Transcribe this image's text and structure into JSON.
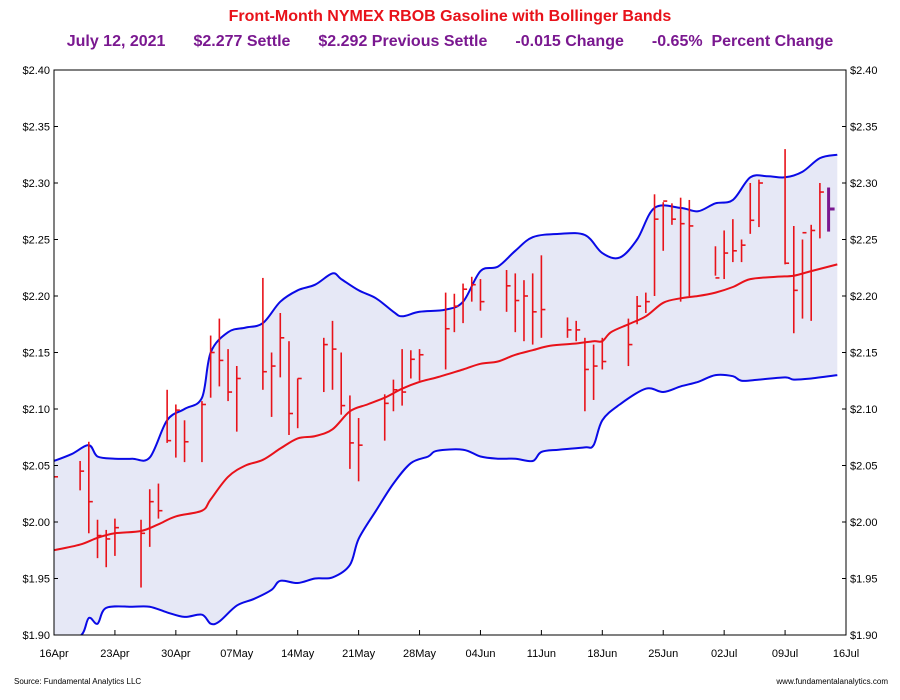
{
  "header": {
    "title": "Front-Month NYMEX RBOB Gasoline with Bollinger Bands",
    "date": "July 12, 2021",
    "settle": "$2.277 Settle",
    "previous_settle": "$2.292 Previous Settle",
    "change": "-0.015 Change",
    "percent_change": "-0.65%  Percent Change"
  },
  "footer": {
    "source": "Source: Fundamental Analytics LLC",
    "website": "www.fundamentalanalytics.com"
  },
  "colors": {
    "price_bar": "#e8121a",
    "upper_band": "#0a0ae6",
    "lower_band": "#0a0ae6",
    "middle_band": "#e8121a",
    "band_fill": "#e6e8f6",
    "last_bar": "#7a1890"
  },
  "chart_data": {
    "type": "ohlc",
    "title": "Front-Month NYMEX RBOB Gasoline with Bollinger Bands",
    "x_range": [
      "16Apr",
      "16Jul"
    ],
    "x_ticks": [
      "16Apr",
      "23Apr",
      "30Apr",
      "07May",
      "14May",
      "21May",
      "28May",
      "04Jun",
      "11Jun",
      "18Jun",
      "25Jun",
      "02Jul",
      "09Jul",
      "16Jul"
    ],
    "ylim": [
      1.9,
      2.4
    ],
    "y_ticks": [
      "$1.90",
      "$1.95",
      "$2.00",
      "$2.05",
      "$2.10",
      "$2.15",
      "$2.20",
      "$2.25",
      "$2.30",
      "$2.35",
      "$2.40"
    ],
    "y_tick_values": [
      1.9,
      1.95,
      2.0,
      2.05,
      2.1,
      2.15,
      2.2,
      2.25,
      2.3,
      2.35,
      2.4
    ],
    "bars": [
      {
        "day": 0,
        "h": 2.04,
        "l": 2.04,
        "c": 2.04
      },
      {
        "day": 3,
        "h": 2.054,
        "l": 2.028,
        "c": 2.045
      },
      {
        "day": 4,
        "h": 2.071,
        "l": 1.99,
        "c": 2.018
      },
      {
        "day": 5,
        "h": 2.002,
        "l": 1.968,
        "c": 1.988
      },
      {
        "day": 6,
        "h": 1.993,
        "l": 1.96,
        "c": 1.985
      },
      {
        "day": 7,
        "h": 2.003,
        "l": 1.97,
        "c": 1.995
      },
      {
        "day": 10,
        "h": 2.002,
        "l": 1.942,
        "c": 1.99
      },
      {
        "day": 11,
        "h": 2.029,
        "l": 1.978,
        "c": 2.018
      },
      {
        "day": 12,
        "h": 2.034,
        "l": 2.003,
        "c": 2.01
      },
      {
        "day": 13,
        "h": 2.117,
        "l": 2.07,
        "c": 2.072
      },
      {
        "day": 14,
        "h": 2.104,
        "l": 2.057,
        "c": 2.099
      },
      {
        "day": 15,
        "h": 2.09,
        "l": 2.053,
        "c": 2.071
      },
      {
        "day": 17,
        "h": 2.107,
        "l": 2.053,
        "c": 2.104
      },
      {
        "day": 18,
        "h": 2.165,
        "l": 2.11,
        "c": 2.15
      },
      {
        "day": 19,
        "h": 2.18,
        "l": 2.12,
        "c": 2.143
      },
      {
        "day": 20,
        "h": 2.153,
        "l": 2.107,
        "c": 2.115
      },
      {
        "day": 21,
        "h": 2.138,
        "l": 2.08,
        "c": 2.127
      },
      {
        "day": 24,
        "h": 2.216,
        "l": 2.117,
        "c": 2.133
      },
      {
        "day": 25,
        "h": 2.15,
        "l": 2.093,
        "c": 2.138
      },
      {
        "day": 26,
        "h": 2.185,
        "l": 2.128,
        "c": 2.163
      },
      {
        "day": 27,
        "h": 2.16,
        "l": 2.077,
        "c": 2.096
      },
      {
        "day": 28,
        "h": 2.127,
        "l": 2.083,
        "c": 2.127
      },
      {
        "day": 31,
        "h": 2.163,
        "l": 2.115,
        "c": 2.157
      },
      {
        "day": 32,
        "h": 2.178,
        "l": 2.117,
        "c": 2.153
      },
      {
        "day": 33,
        "h": 2.15,
        "l": 2.095,
        "c": 2.103
      },
      {
        "day": 34,
        "h": 2.112,
        "l": 2.047,
        "c": 2.07
      },
      {
        "day": 35,
        "h": 2.092,
        "l": 2.036,
        "c": 2.068
      },
      {
        "day": 38,
        "h": 2.113,
        "l": 2.072,
        "c": 2.105
      },
      {
        "day": 39,
        "h": 2.126,
        "l": 2.098,
        "c": 2.117
      },
      {
        "day": 40,
        "h": 2.153,
        "l": 2.103,
        "c": 2.115
      },
      {
        "day": 41,
        "h": 2.152,
        "l": 2.127,
        "c": 2.144
      },
      {
        "day": 42,
        "h": 2.153,
        "l": 2.125,
        "c": 2.148
      },
      {
        "day": 45,
        "h": 2.203,
        "l": 2.135,
        "c": 2.171
      },
      {
        "day": 46,
        "h": 2.202,
        "l": 2.168,
        "c": 2.191
      },
      {
        "day": 47,
        "h": 2.211,
        "l": 2.176,
        "c": 2.206
      },
      {
        "day": 48,
        "h": 2.217,
        "l": 2.195,
        "c": 2.21
      },
      {
        "day": 49,
        "h": 2.215,
        "l": 2.187,
        "c": 2.195
      },
      {
        "day": 52,
        "h": 2.223,
        "l": 2.186,
        "c": 2.209
      },
      {
        "day": 53,
        "h": 2.22,
        "l": 2.168,
        "c": 2.196
      },
      {
        "day": 54,
        "h": 2.214,
        "l": 2.16,
        "c": 2.2
      },
      {
        "day": 55,
        "h": 2.22,
        "l": 2.157,
        "c": 2.186
      },
      {
        "day": 56,
        "h": 2.236,
        "l": 2.163,
        "c": 2.188
      },
      {
        "day": 59,
        "h": 2.181,
        "l": 2.163,
        "c": 2.17
      },
      {
        "day": 60,
        "h": 2.178,
        "l": 2.16,
        "c": 2.17
      },
      {
        "day": 61,
        "h": 2.163,
        "l": 2.098,
        "c": 2.135
      },
      {
        "day": 62,
        "h": 2.157,
        "l": 2.108,
        "c": 2.138
      },
      {
        "day": 63,
        "h": 2.163,
        "l": 2.135,
        "c": 2.142
      },
      {
        "day": 66,
        "h": 2.18,
        "l": 2.138,
        "c": 2.157
      },
      {
        "day": 67,
        "h": 2.2,
        "l": 2.175,
        "c": 2.191
      },
      {
        "day": 68,
        "h": 2.203,
        "l": 2.185,
        "c": 2.195
      },
      {
        "day": 69,
        "h": 2.29,
        "l": 2.2,
        "c": 2.268
      },
      {
        "day": 70,
        "h": 2.283,
        "l": 2.24,
        "c": 2.284
      },
      {
        "day": 71,
        "h": 2.282,
        "l": 2.263,
        "c": 2.268
      },
      {
        "day": 72,
        "h": 2.287,
        "l": 2.195,
        "c": 2.264
      },
      {
        "day": 73,
        "h": 2.285,
        "l": 2.2,
        "c": 2.262
      },
      {
        "day": 76,
        "h": 2.244,
        "l": 2.218,
        "c": 2.216
      },
      {
        "day": 77,
        "h": 2.258,
        "l": 2.215,
        "c": 2.238
      },
      {
        "day": 78,
        "h": 2.268,
        "l": 2.23,
        "c": 2.24
      },
      {
        "day": 79,
        "h": 2.25,
        "l": 2.23,
        "c": 2.245
      },
      {
        "day": 80,
        "h": 2.3,
        "l": 2.255,
        "c": 2.267
      },
      {
        "day": 81,
        "h": 2.303,
        "l": 2.261,
        "c": 2.3
      },
      {
        "day": 84,
        "h": 2.33,
        "l": 2.228,
        "c": 2.229
      },
      {
        "day": 85,
        "h": 2.262,
        "l": 2.167,
        "c": 2.205
      },
      {
        "day": 86,
        "h": 2.25,
        "l": 2.18,
        "c": 2.256
      },
      {
        "day": 87,
        "h": 2.263,
        "l": 2.178,
        "c": 2.258
      },
      {
        "day": 88,
        "h": 2.3,
        "l": 2.251,
        "c": 2.292
      }
    ],
    "last_bar": {
      "day": 89,
      "h": 2.296,
      "l": 2.257,
      "c": 2.277
    },
    "upper_band": [
      [
        0,
        2.054
      ],
      [
        2,
        2.06
      ],
      [
        4,
        2.068
      ],
      [
        5,
        2.058
      ],
      [
        7,
        2.056
      ],
      [
        9,
        2.056
      ],
      [
        11,
        2.057
      ],
      [
        13,
        2.09
      ],
      [
        15,
        2.1
      ],
      [
        17,
        2.11
      ],
      [
        18,
        2.15
      ],
      [
        20,
        2.168
      ],
      [
        22,
        2.172
      ],
      [
        24,
        2.176
      ],
      [
        26,
        2.195
      ],
      [
        28,
        2.205
      ],
      [
        30,
        2.21
      ],
      [
        32,
        2.22
      ],
      [
        33,
        2.215
      ],
      [
        35,
        2.205
      ],
      [
        37,
        2.198
      ],
      [
        39,
        2.186
      ],
      [
        40,
        2.182
      ],
      [
        42,
        2.186
      ],
      [
        45,
        2.188
      ],
      [
        47,
        2.195
      ],
      [
        49,
        2.222
      ],
      [
        51,
        2.226
      ],
      [
        53,
        2.24
      ],
      [
        55,
        2.252
      ],
      [
        58,
        2.255
      ],
      [
        61,
        2.254
      ],
      [
        63,
        2.238
      ],
      [
        65,
        2.234
      ],
      [
        67,
        2.25
      ],
      [
        69,
        2.278
      ],
      [
        72,
        2.278
      ],
      [
        74,
        2.275
      ],
      [
        76,
        2.282
      ],
      [
        78,
        2.285
      ],
      [
        80,
        2.305
      ],
      [
        82,
        2.306
      ],
      [
        84,
        2.305
      ],
      [
        86,
        2.31
      ],
      [
        88,
        2.322
      ],
      [
        90,
        2.325
      ]
    ],
    "middle_band": [
      [
        0,
        1.975
      ],
      [
        3,
        1.98
      ],
      [
        5,
        1.986
      ],
      [
        7,
        1.99
      ],
      [
        10,
        1.992
      ],
      [
        12,
        1.998
      ],
      [
        14,
        2.005
      ],
      [
        17,
        2.01
      ],
      [
        18,
        2.02
      ],
      [
        20,
        2.04
      ],
      [
        22,
        2.05
      ],
      [
        24,
        2.055
      ],
      [
        26,
        2.065
      ],
      [
        28,
        2.074
      ],
      [
        30,
        2.076
      ],
      [
        32,
        2.082
      ],
      [
        34,
        2.098
      ],
      [
        36,
        2.104
      ],
      [
        38,
        2.11
      ],
      [
        40,
        2.118
      ],
      [
        42,
        2.124
      ],
      [
        44,
        2.128
      ],
      [
        47,
        2.135
      ],
      [
        49,
        2.14
      ],
      [
        51,
        2.142
      ],
      [
        53,
        2.148
      ],
      [
        55,
        2.152
      ],
      [
        57,
        2.156
      ],
      [
        60,
        2.158
      ],
      [
        62,
        2.16
      ],
      [
        63,
        2.16
      ],
      [
        64,
        2.168
      ],
      [
        66,
        2.175
      ],
      [
        68,
        2.182
      ],
      [
        70,
        2.194
      ],
      [
        72,
        2.198
      ],
      [
        74,
        2.2
      ],
      [
        76,
        2.203
      ],
      [
        78,
        2.208
      ],
      [
        80,
        2.215
      ],
      [
        83,
        2.217
      ],
      [
        85,
        2.218
      ],
      [
        87,
        2.222
      ],
      [
        90,
        2.228
      ]
    ],
    "lower_band": [
      [
        0,
        1.895
      ],
      [
        3,
        1.899
      ],
      [
        4,
        1.915
      ],
      [
        5,
        1.91
      ],
      [
        6,
        1.924
      ],
      [
        9,
        1.925
      ],
      [
        11,
        1.925
      ],
      [
        13,
        1.92
      ],
      [
        15,
        1.916
      ],
      [
        17,
        1.918
      ],
      [
        18,
        1.91
      ],
      [
        19,
        1.912
      ],
      [
        21,
        1.926
      ],
      [
        23,
        1.932
      ],
      [
        25,
        1.94
      ],
      [
        26,
        1.948
      ],
      [
        28,
        1.946
      ],
      [
        30,
        1.95
      ],
      [
        32,
        1.951
      ],
      [
        34,
        1.962
      ],
      [
        35,
        1.985
      ],
      [
        37,
        2.01
      ],
      [
        39,
        2.034
      ],
      [
        41,
        2.052
      ],
      [
        43,
        2.058
      ],
      [
        44,
        2.063
      ],
      [
        47,
        2.064
      ],
      [
        49,
        2.058
      ],
      [
        51,
        2.056
      ],
      [
        53,
        2.056
      ],
      [
        55,
        2.054
      ],
      [
        56,
        2.062
      ],
      [
        58,
        2.064
      ],
      [
        61,
        2.066
      ],
      [
        62,
        2.068
      ],
      [
        63,
        2.09
      ],
      [
        65,
        2.104
      ],
      [
        68,
        2.118
      ],
      [
        70,
        2.115
      ],
      [
        72,
        2.12
      ],
      [
        74,
        2.124
      ],
      [
        76,
        2.13
      ],
      [
        78,
        2.129
      ],
      [
        79,
        2.125
      ],
      [
        81,
        2.126
      ],
      [
        84,
        2.128
      ],
      [
        85,
        2.126
      ],
      [
        87,
        2.127
      ],
      [
        90,
        2.13
      ]
    ]
  }
}
